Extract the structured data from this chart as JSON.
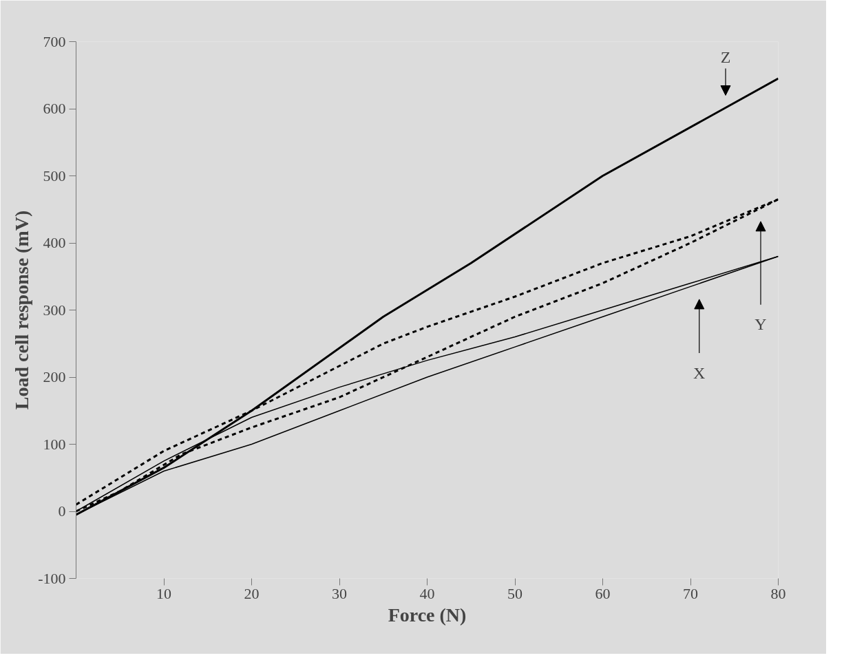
{
  "chart_data": {
    "type": "line",
    "xlabel": "Force (N)",
    "ylabel": "Load cell response (mV)",
    "xlim": [
      0,
      80
    ],
    "ylim": [
      -100,
      700
    ],
    "xticks": [
      10,
      20,
      30,
      40,
      50,
      60,
      70,
      80
    ],
    "yticks": [
      -100,
      0,
      100,
      200,
      300,
      400,
      500,
      600,
      700
    ],
    "grid": false,
    "marker": "none",
    "series": [
      {
        "color": "#000000",
        "line_style": "solid",
        "x": [
          0,
          10,
          20,
          35,
          45,
          60,
          80
        ],
        "values": [
          -5,
          65,
          150,
          290,
          370,
          500,
          645
        ]
      },
      {
        "color": "#000000",
        "line_style": "dashed",
        "x": [
          0,
          10,
          20,
          35,
          40,
          50,
          60,
          70,
          80
        ],
        "values": [
          10,
          90,
          150,
          250,
          275,
          320,
          370,
          410,
          465
        ]
      },
      {
        "color": "#000000",
        "line_style": "dashed",
        "x": [
          0,
          5,
          12,
          20,
          30,
          40,
          50,
          60,
          70,
          80
        ],
        "values": [
          0,
          30,
          85,
          125,
          170,
          230,
          290,
          340,
          400,
          465
        ]
      },
      {
        "color": "#000000",
        "line_style": "solid",
        "x": [
          0,
          10,
          20,
          30,
          40,
          50,
          60,
          70,
          80
        ],
        "values": [
          0,
          75,
          140,
          185,
          225,
          260,
          300,
          340,
          380
        ]
      },
      {
        "color": "#000000",
        "line_style": "solid",
        "x": [
          0,
          10,
          20,
          30,
          40,
          50,
          60,
          70,
          80
        ],
        "values": [
          -5,
          60,
          100,
          150,
          200,
          245,
          290,
          335,
          380
        ]
      }
    ],
    "annotations": [
      "Z",
      "X",
      "Y"
    ]
  }
}
